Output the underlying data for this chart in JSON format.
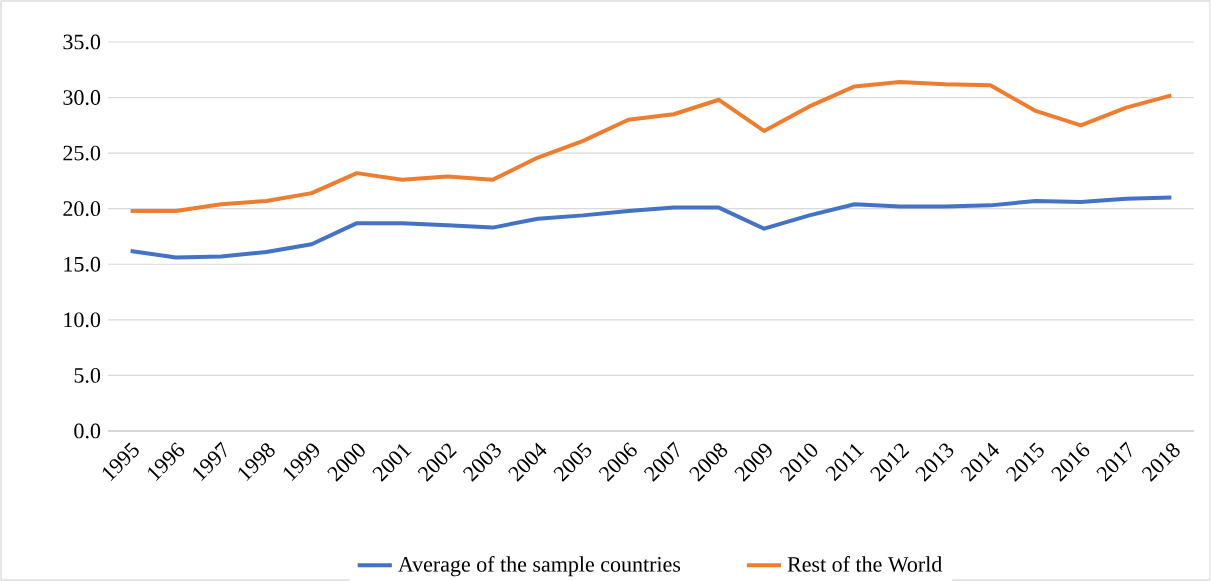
{
  "chart_data": {
    "type": "line",
    "categories": [
      "1995",
      "1996",
      "1997",
      "1998",
      "1999",
      "2000",
      "2001",
      "2002",
      "2003",
      "2004",
      "2005",
      "2006",
      "2007",
      "2008",
      "2009",
      "2010",
      "2011",
      "2012",
      "2013",
      "2014",
      "2015",
      "2016",
      "2017",
      "2018"
    ],
    "series": [
      {
        "name": "Average of the sample countries",
        "color": "#4472c4",
        "values": [
          16.2,
          15.6,
          15.7,
          16.1,
          16.8,
          18.7,
          18.7,
          18.5,
          18.3,
          19.1,
          19.4,
          19.8,
          20.1,
          20.1,
          18.2,
          19.4,
          20.4,
          20.2,
          20.2,
          20.3,
          20.7,
          20.6,
          20.9,
          21.0
        ]
      },
      {
        "name": "Rest of the World",
        "color": "#ed7d31",
        "values": [
          19.8,
          19.8,
          20.4,
          20.7,
          21.4,
          23.2,
          22.6,
          22.9,
          22.6,
          24.6,
          26.1,
          28.0,
          28.5,
          29.8,
          27.0,
          29.2,
          31.0,
          31.4,
          31.2,
          31.1,
          28.8,
          27.5,
          29.1,
          30.2
        ]
      }
    ],
    "ylim": [
      0,
      35
    ],
    "yticks": [
      {
        "value": 0,
        "label": "0.0"
      },
      {
        "value": 5,
        "label": "5.0"
      },
      {
        "value": 10,
        "label": "10.0"
      },
      {
        "value": 15,
        "label": "15.0"
      },
      {
        "value": 20,
        "label": "20.0"
      },
      {
        "value": 25,
        "label": "25.0"
      },
      {
        "value": 30,
        "label": "30.0"
      },
      {
        "value": 35,
        "label": "35.0"
      }
    ],
    "grid": "y",
    "legend": "bottom"
  }
}
